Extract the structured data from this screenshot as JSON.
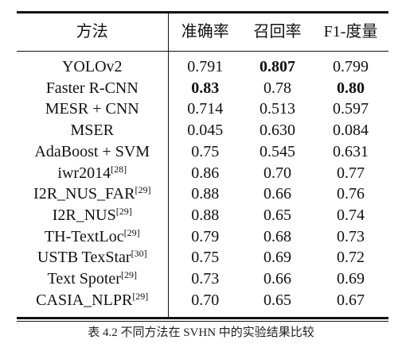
{
  "table": {
    "headers": {
      "method": "方法",
      "precision": "准确率",
      "recall": "召回率",
      "f1": "F1-度量"
    },
    "rows": [
      {
        "method": "YOLOv2",
        "ref": "",
        "precision": "0.791",
        "recall": "0.807",
        "f1": "0.799",
        "bold": {
          "precision": false,
          "recall": true,
          "f1": false
        }
      },
      {
        "method": "Faster R-CNN",
        "ref": "",
        "precision": "0.83",
        "recall": "0.78",
        "f1": "0.80",
        "bold": {
          "precision": true,
          "recall": false,
          "f1": true
        }
      },
      {
        "method": "MESR + CNN",
        "ref": "",
        "precision": "0.714",
        "recall": "0.513",
        "f1": "0.597",
        "bold": {
          "precision": false,
          "recall": false,
          "f1": false
        }
      },
      {
        "method": "MSER",
        "ref": "",
        "precision": "0.045",
        "recall": "0.630",
        "f1": "0.084",
        "bold": {
          "precision": false,
          "recall": false,
          "f1": false
        }
      },
      {
        "method": "AdaBoost + SVM",
        "ref": "",
        "precision": "0.75",
        "recall": "0.545",
        "f1": "0.631",
        "bold": {
          "precision": false,
          "recall": false,
          "f1": false
        }
      },
      {
        "method": "iwr2014",
        "ref": "[28]",
        "precision": "0.86",
        "recall": "0.70",
        "f1": "0.77",
        "bold": {
          "precision": false,
          "recall": false,
          "f1": false
        }
      },
      {
        "method": "I2R_NUS_FAR",
        "ref": "[29]",
        "precision": "0.88",
        "recall": "0.66",
        "f1": "0.76",
        "bold": {
          "precision": false,
          "recall": false,
          "f1": false
        }
      },
      {
        "method": "I2R_NUS",
        "ref": "[29]",
        "precision": "0.88",
        "recall": "0.65",
        "f1": "0.74",
        "bold": {
          "precision": false,
          "recall": false,
          "f1": false
        }
      },
      {
        "method": "TH-TextLoc",
        "ref": "[29]",
        "precision": "0.79",
        "recall": "0.68",
        "f1": "0.73",
        "bold": {
          "precision": false,
          "recall": false,
          "f1": false
        }
      },
      {
        "method": "USTB TexStar",
        "ref": "[30]",
        "precision": "0.75",
        "recall": "0.69",
        "f1": "0.72",
        "bold": {
          "precision": false,
          "recall": false,
          "f1": false
        }
      },
      {
        "method": "Text Spoter",
        "ref": "[29]",
        "precision": "0.73",
        "recall": "0.66",
        "f1": "0.69",
        "bold": {
          "precision": false,
          "recall": false,
          "f1": false
        }
      },
      {
        "method": "CASIA_NLPR",
        "ref": "[29]",
        "precision": "0.70",
        "recall": "0.65",
        "f1": "0.67",
        "bold": {
          "precision": false,
          "recall": false,
          "f1": false
        }
      }
    ]
  },
  "caption": "表 4.2 不同方法在 SVHN 中的实验结果比较"
}
